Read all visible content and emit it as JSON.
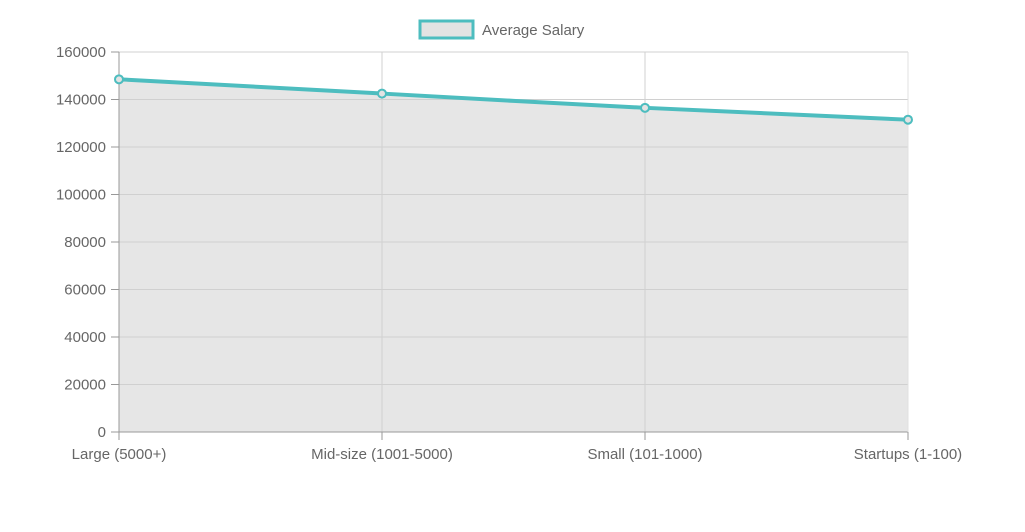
{
  "chart_data": {
    "type": "area",
    "categories": [
      "Large (5000+)",
      "Mid-size (1001-5000)",
      "Small (101-1000)",
      "Startups (1-100)"
    ],
    "series": [
      {
        "name": "Average Salary",
        "values": [
          148500,
          142500,
          136500,
          131500
        ]
      }
    ],
    "y_ticks": [
      "0",
      "20000",
      "40000",
      "60000",
      "80000",
      "100000",
      "120000",
      "140000",
      "160000"
    ],
    "ylim": [
      0,
      160000
    ],
    "xlabel": "",
    "ylabel": "",
    "grid": true,
    "legend_position": "top-center",
    "colors": {
      "line": "#4dbdbf",
      "fill": "#e3e3e3",
      "grid": "#e0e0e0",
      "axis": "#999999",
      "tick_text": "#666666"
    }
  }
}
